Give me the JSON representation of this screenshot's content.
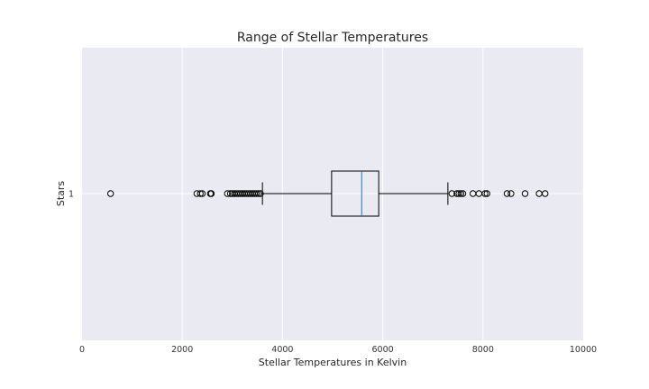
{
  "chart_data": {
    "type": "boxplot",
    "orientation": "horizontal",
    "title": "Range of Stellar Temperatures",
    "xlabel": "Stellar Temperatures in Kelvin",
    "ylabel": "Stars",
    "xlim": [
      0,
      10000
    ],
    "x_ticks": [
      0,
      2000,
      4000,
      6000,
      8000,
      10000
    ],
    "grid": true,
    "style": "seaborn-darkgrid",
    "colors": {
      "plot_background": "#EAEAF2",
      "grid": "#FFFFFF",
      "box_edge": "#000000",
      "median": "#1F77B4"
    },
    "boxes": [
      {
        "category": "1",
        "whisker_low": 3600,
        "q1": 4980,
        "median": 5580,
        "q3": 5920,
        "whisker_high": 7300,
        "outliers": [
          570,
          2290,
          2360,
          2400,
          2560,
          2580,
          2900,
          2960,
          3000,
          3040,
          3080,
          3120,
          3160,
          3200,
          3240,
          3280,
          3320,
          3360,
          3400,
          3440,
          3480,
          3520,
          3560,
          7380,
          7480,
          7520,
          7560,
          7600,
          7800,
          7920,
          8040,
          8080,
          8480,
          8560,
          8840,
          9120,
          9240
        ]
      }
    ]
  }
}
